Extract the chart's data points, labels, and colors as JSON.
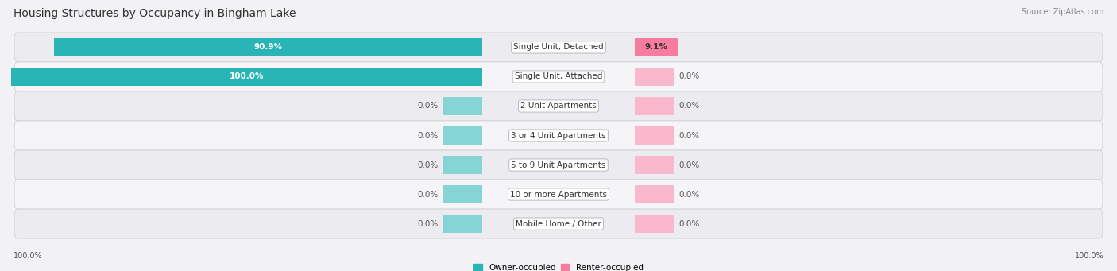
{
  "title": "Housing Structures by Occupancy in Bingham Lake",
  "source": "Source: ZipAtlas.com",
  "categories": [
    "Single Unit, Detached",
    "Single Unit, Attached",
    "2 Unit Apartments",
    "3 or 4 Unit Apartments",
    "5 to 9 Unit Apartments",
    "10 or more Apartments",
    "Mobile Home / Other"
  ],
  "owner_values": [
    90.9,
    100.0,
    0.0,
    0.0,
    0.0,
    0.0,
    0.0
  ],
  "renter_values": [
    9.1,
    0.0,
    0.0,
    0.0,
    0.0,
    0.0,
    0.0
  ],
  "owner_color": "#29b5b5",
  "renter_color": "#f87ca0",
  "renter_stub_color": "#f9b8cc",
  "owner_stub_color": "#85d5d5",
  "background_color": "#f2f2f5",
  "row_colors": [
    "#ebebf0",
    "#f5f5f8"
  ],
  "title_fontsize": 10,
  "label_fontsize": 7.5,
  "value_fontsize": 7.5,
  "tick_fontsize": 7,
  "source_fontsize": 7
}
